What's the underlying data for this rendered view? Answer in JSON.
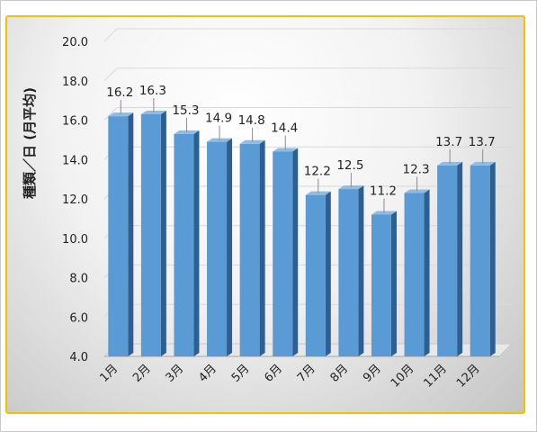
{
  "chart_data": {
    "type": "bar",
    "title": "",
    "xlabel": "",
    "ylabel": "種類／日 (月平均)",
    "categories": [
      "1月",
      "2月",
      "3月",
      "4月",
      "5月",
      "6月",
      "7月",
      "8月",
      "9月",
      "10月",
      "11月",
      "12月"
    ],
    "values": [
      16.2,
      16.3,
      15.3,
      14.9,
      14.8,
      14.4,
      12.2,
      12.5,
      11.2,
      12.3,
      13.7,
      13.7
    ],
    "ylim": [
      4.0,
      20.0
    ],
    "yticks": [
      "4.0",
      "6.0",
      "8.0",
      "10.0",
      "12.0",
      "14.0",
      "16.0",
      "18.0",
      "20.0"
    ],
    "data_labels": [
      "16.2",
      "16.3",
      "15.3",
      "14.9",
      "14.8",
      "14.4",
      "12.2",
      "12.5",
      "11.2",
      "12.3",
      "13.7",
      "13.7"
    ],
    "grid": true,
    "legend": "none",
    "bar_style": "3d-column",
    "colors": {
      "bar_front": "#5b9bd5",
      "bar_side": "#2e5f92",
      "bar_top": "#8fbbe4",
      "frame_border": "#f2c200"
    }
  }
}
